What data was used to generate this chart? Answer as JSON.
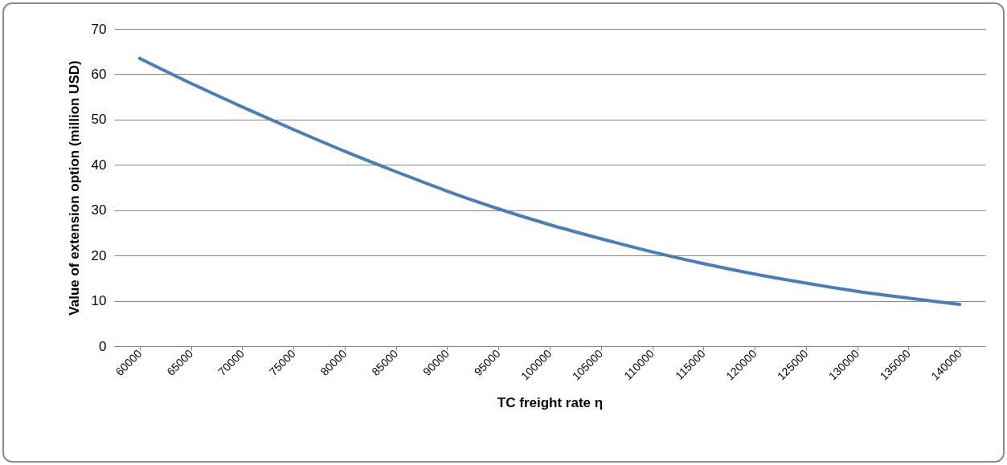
{
  "chart_data": {
    "type": "line",
    "xlabel": "TC freight rate η",
    "ylabel": "Value of extension option (million USD)",
    "categories": [
      "60000",
      "65000",
      "70000",
      "75000",
      "80000",
      "85000",
      "90000",
      "95000",
      "100000",
      "105000",
      "110000",
      "115000",
      "120000",
      "125000",
      "130000",
      "135000",
      "140000"
    ],
    "series": [
      {
        "color": "#4a7ebb",
        "values": [
          63.5,
          58,
          52.8,
          47.8,
          43,
          38.5,
          34.2,
          30.3,
          26.8,
          23.7,
          20.8,
          18.2,
          15.9,
          13.9,
          12.1,
          10.6,
          9.2
        ]
      }
    ],
    "ylim": [
      0,
      70
    ],
    "yticks": [
      0,
      10,
      20,
      30,
      40,
      50,
      60,
      70
    ],
    "grid": "y",
    "marker": "none",
    "line_style": "solid"
  }
}
